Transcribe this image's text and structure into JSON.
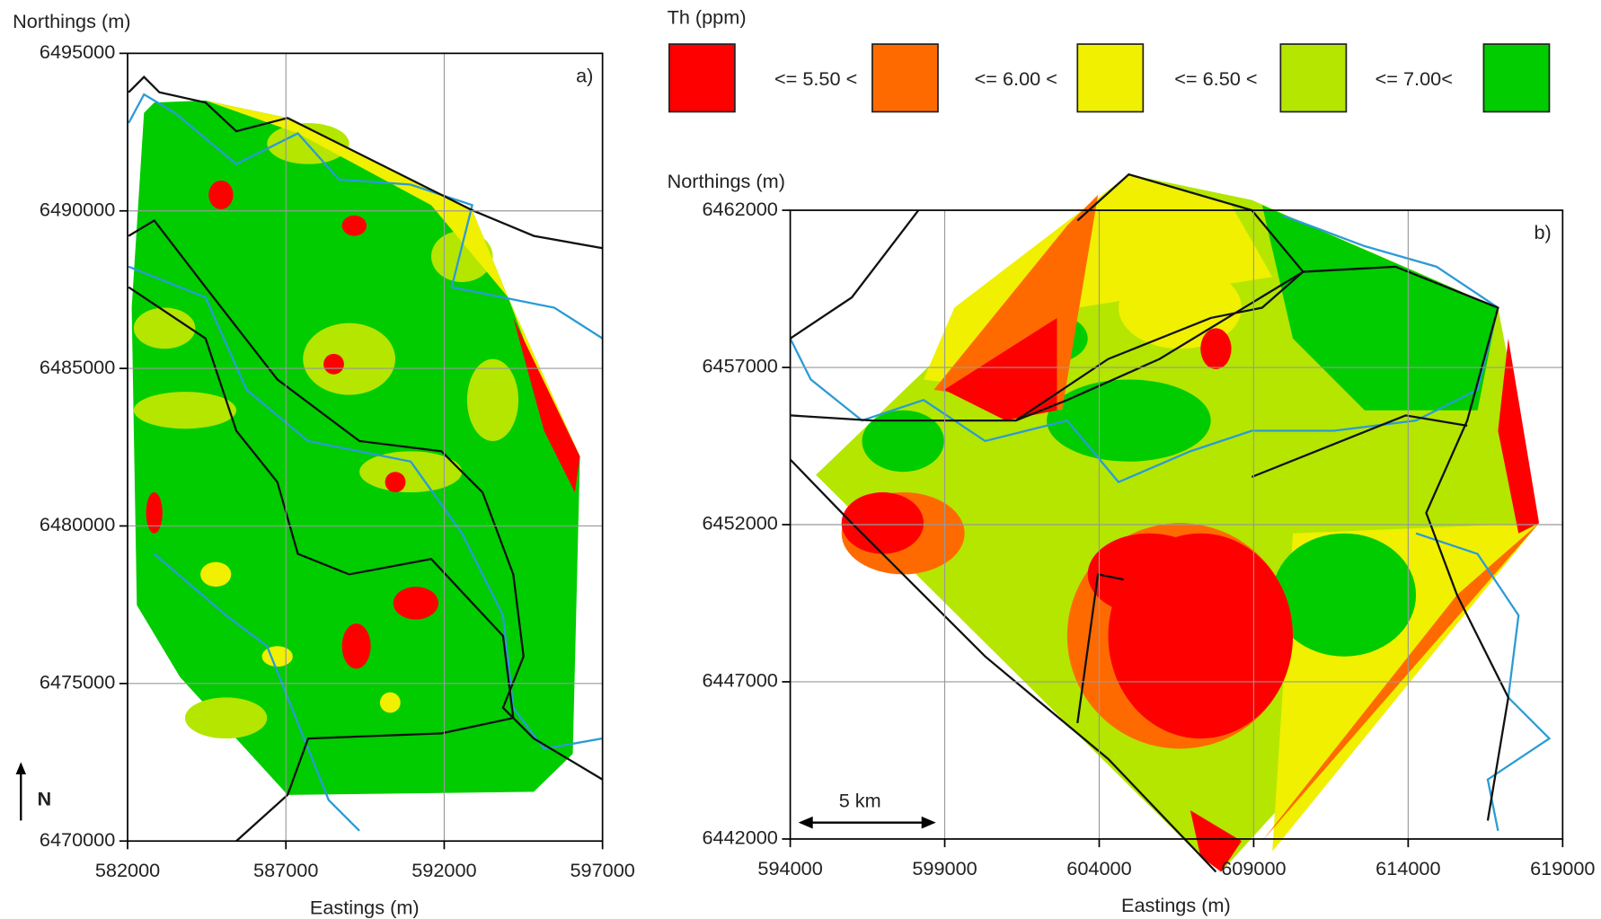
{
  "legend": {
    "title": "Th (ppm)",
    "colors": [
      "#ff0000",
      "#ff6a00",
      "#f0f000",
      "#b4e600",
      "#00cc00"
    ],
    "labels": [
      "<= 5.50 <",
      "<= 6.00 <",
      "<= 6.50 <",
      "<= 7.00<"
    ]
  },
  "panels": [
    {
      "label": "a)",
      "y_label": "Northings (m)",
      "x_label": "Eastings (m)",
      "xlim": [
        582000,
        597000
      ],
      "ylim": [
        6470000,
        6495000
      ],
      "xticks": [
        582000,
        587000,
        592000,
        597000
      ],
      "yticks": [
        6470000,
        6475000,
        6480000,
        6485000,
        6490000,
        6495000
      ]
    },
    {
      "label": "b)",
      "y_label": "Northings (m)",
      "x_label": "Eastings (m)",
      "xlim": [
        594000,
        619000
      ],
      "ylim": [
        6442000,
        6462000
      ],
      "xticks": [
        594000,
        599000,
        604000,
        609000,
        614000,
        619000
      ],
      "yticks": [
        6442000,
        6447000,
        6452000,
        6457000,
        6462000
      ]
    }
  ],
  "north_label": "N",
  "scale_bar": "5 km"
}
